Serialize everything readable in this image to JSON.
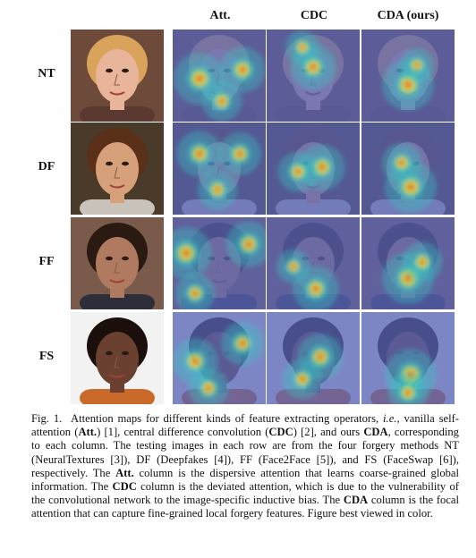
{
  "figure": {
    "columns": [
      "Att.",
      "CDC",
      "CDA (ours)"
    ],
    "rows": [
      "NT",
      "DF",
      "FF",
      "FS"
    ],
    "colors": {
      "heatmap_low": "#1a2a9c",
      "heatmap_mid": "#34c9c3",
      "heatmap_high": "#f24a1f",
      "heatmap_peak": "#e8e23a"
    }
  },
  "caption": {
    "prefix": "Fig. 1.",
    "t1": "Attention maps for different kinds of feature extracting operators, ",
    "ie": "i.e.",
    "t2": ", vanilla self-attention (",
    "att": "Att.",
    "t3": ") [1], central difference convolution (",
    "cdc": "CDC",
    "t4": ") [2], and ours ",
    "cda": "CDA",
    "t5": ", corresponding to each column. The testing images in each row are from the four forgery methods NT (NeuralTextures [3]), DF (Deepfakes [4]), FF (Face2Face [5]), and FS (FaceSwap [6]), respectively. The ",
    "att2": "Att.",
    "t6": " column is the dispersive attention that learns coarse-grained global information. The ",
    "cdc2": "CDC",
    "t7": " column is the deviated attention, which is due to the vulnerability of the convolutional network to the image-specific inductive bias. The ",
    "cda2": "CDA",
    "t8": " column is the focal attention that can capture fine-grained local forgery features. Figure best viewed in color."
  }
}
